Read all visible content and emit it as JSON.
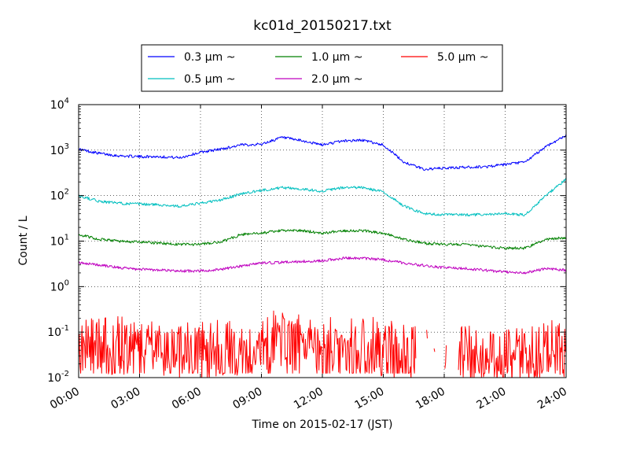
{
  "chart_data": {
    "type": "line",
    "title": "kc01d_20150217.txt",
    "xlabel": "Time on 2015-02-17 (JST)",
    "ylabel": "Count / L",
    "xlim": [
      0,
      24
    ],
    "ylim": [
      0.01,
      10000
    ],
    "yscale": "log",
    "grid": true,
    "legend_position": "top",
    "x_tick_labels": [
      "00:00",
      "03:00",
      "06:00",
      "09:00",
      "12:00",
      "15:00",
      "18:00",
      "21:00",
      "24:00"
    ],
    "y_tick_labels": [
      {
        "base": "10",
        "exp": "-2"
      },
      {
        "base": "10",
        "exp": "-1"
      },
      {
        "base": "10",
        "exp": "0"
      },
      {
        "base": "10",
        "exp": "1"
      },
      {
        "base": "10",
        "exp": "2"
      },
      {
        "base": "10",
        "exp": "3"
      },
      {
        "base": "10",
        "exp": "4"
      }
    ],
    "series": [
      {
        "name": "0.3 µm ~",
        "color": "#0000ff",
        "x": [
          0,
          1,
          2,
          3,
          4,
          5,
          6,
          7,
          8,
          9,
          10,
          11,
          12,
          13,
          14,
          15,
          16,
          17,
          18,
          19,
          20,
          21,
          22,
          23,
          24
        ],
        "y": [
          1050,
          850,
          750,
          720,
          720,
          680,
          900,
          1050,
          1300,
          1350,
          1900,
          1600,
          1300,
          1600,
          1650,
          1300,
          550,
          380,
          400,
          420,
          430,
          480,
          550,
          1200,
          2100
        ]
      },
      {
        "name": "0.5 µm ~",
        "color": "#00bfbf",
        "x": [
          0,
          1,
          2,
          3,
          4,
          5,
          6,
          7,
          8,
          9,
          10,
          11,
          12,
          13,
          14,
          15,
          16,
          17,
          18,
          19,
          20,
          21,
          22,
          23,
          24
        ],
        "y": [
          100,
          75,
          68,
          65,
          63,
          58,
          68,
          80,
          110,
          130,
          150,
          140,
          125,
          150,
          150,
          120,
          60,
          40,
          38,
          38,
          38,
          40,
          38,
          100,
          230
        ]
      },
      {
        "name": "1.0 µm ~",
        "color": "#008000",
        "x": [
          0,
          1,
          2,
          3,
          4,
          5,
          6,
          7,
          8,
          9,
          10,
          11,
          12,
          13,
          14,
          15,
          16,
          17,
          18,
          19,
          20,
          21,
          22,
          23,
          24
        ],
        "y": [
          14,
          11,
          10,
          9.5,
          9,
          8.5,
          8.5,
          9.5,
          14,
          15,
          17,
          17,
          15,
          17,
          17,
          15,
          11,
          9,
          8.5,
          8.5,
          7.5,
          7,
          7,
          11,
          12
        ]
      },
      {
        "name": "2.0 µm ~",
        "color": "#bf00bf",
        "x": [
          0,
          1,
          2,
          3,
          4,
          5,
          6,
          7,
          8,
          9,
          10,
          11,
          12,
          13,
          14,
          15,
          16,
          17,
          18,
          19,
          20,
          21,
          22,
          23,
          24
        ],
        "y": [
          3.4,
          3.0,
          2.6,
          2.4,
          2.3,
          2.2,
          2.2,
          2.4,
          2.8,
          3.3,
          3.4,
          3.6,
          3.7,
          4.2,
          4.2,
          3.9,
          3.3,
          2.9,
          2.6,
          2.5,
          2.3,
          2.1,
          2.0,
          2.5,
          2.3
        ]
      },
      {
        "name": "5.0 µm ~",
        "color": "#ff0000",
        "noisy": true,
        "x": [
          0,
          1,
          2,
          3,
          4,
          5,
          6,
          7,
          8,
          9,
          10,
          11,
          12,
          13,
          14,
          15,
          16,
          17,
          18,
          19,
          20,
          21,
          22,
          23,
          24
        ],
        "y": [
          0.06,
          0.05,
          0.05,
          0.05,
          0.045,
          0.04,
          0.04,
          0.045,
          0.05,
          0.06,
          0.07,
          0.06,
          0.05,
          0.05,
          0.05,
          0.045,
          0.035,
          0.03,
          0.03,
          0.035,
          0.03,
          0.025,
          0.03,
          0.045,
          0.04
        ]
      }
    ]
  }
}
